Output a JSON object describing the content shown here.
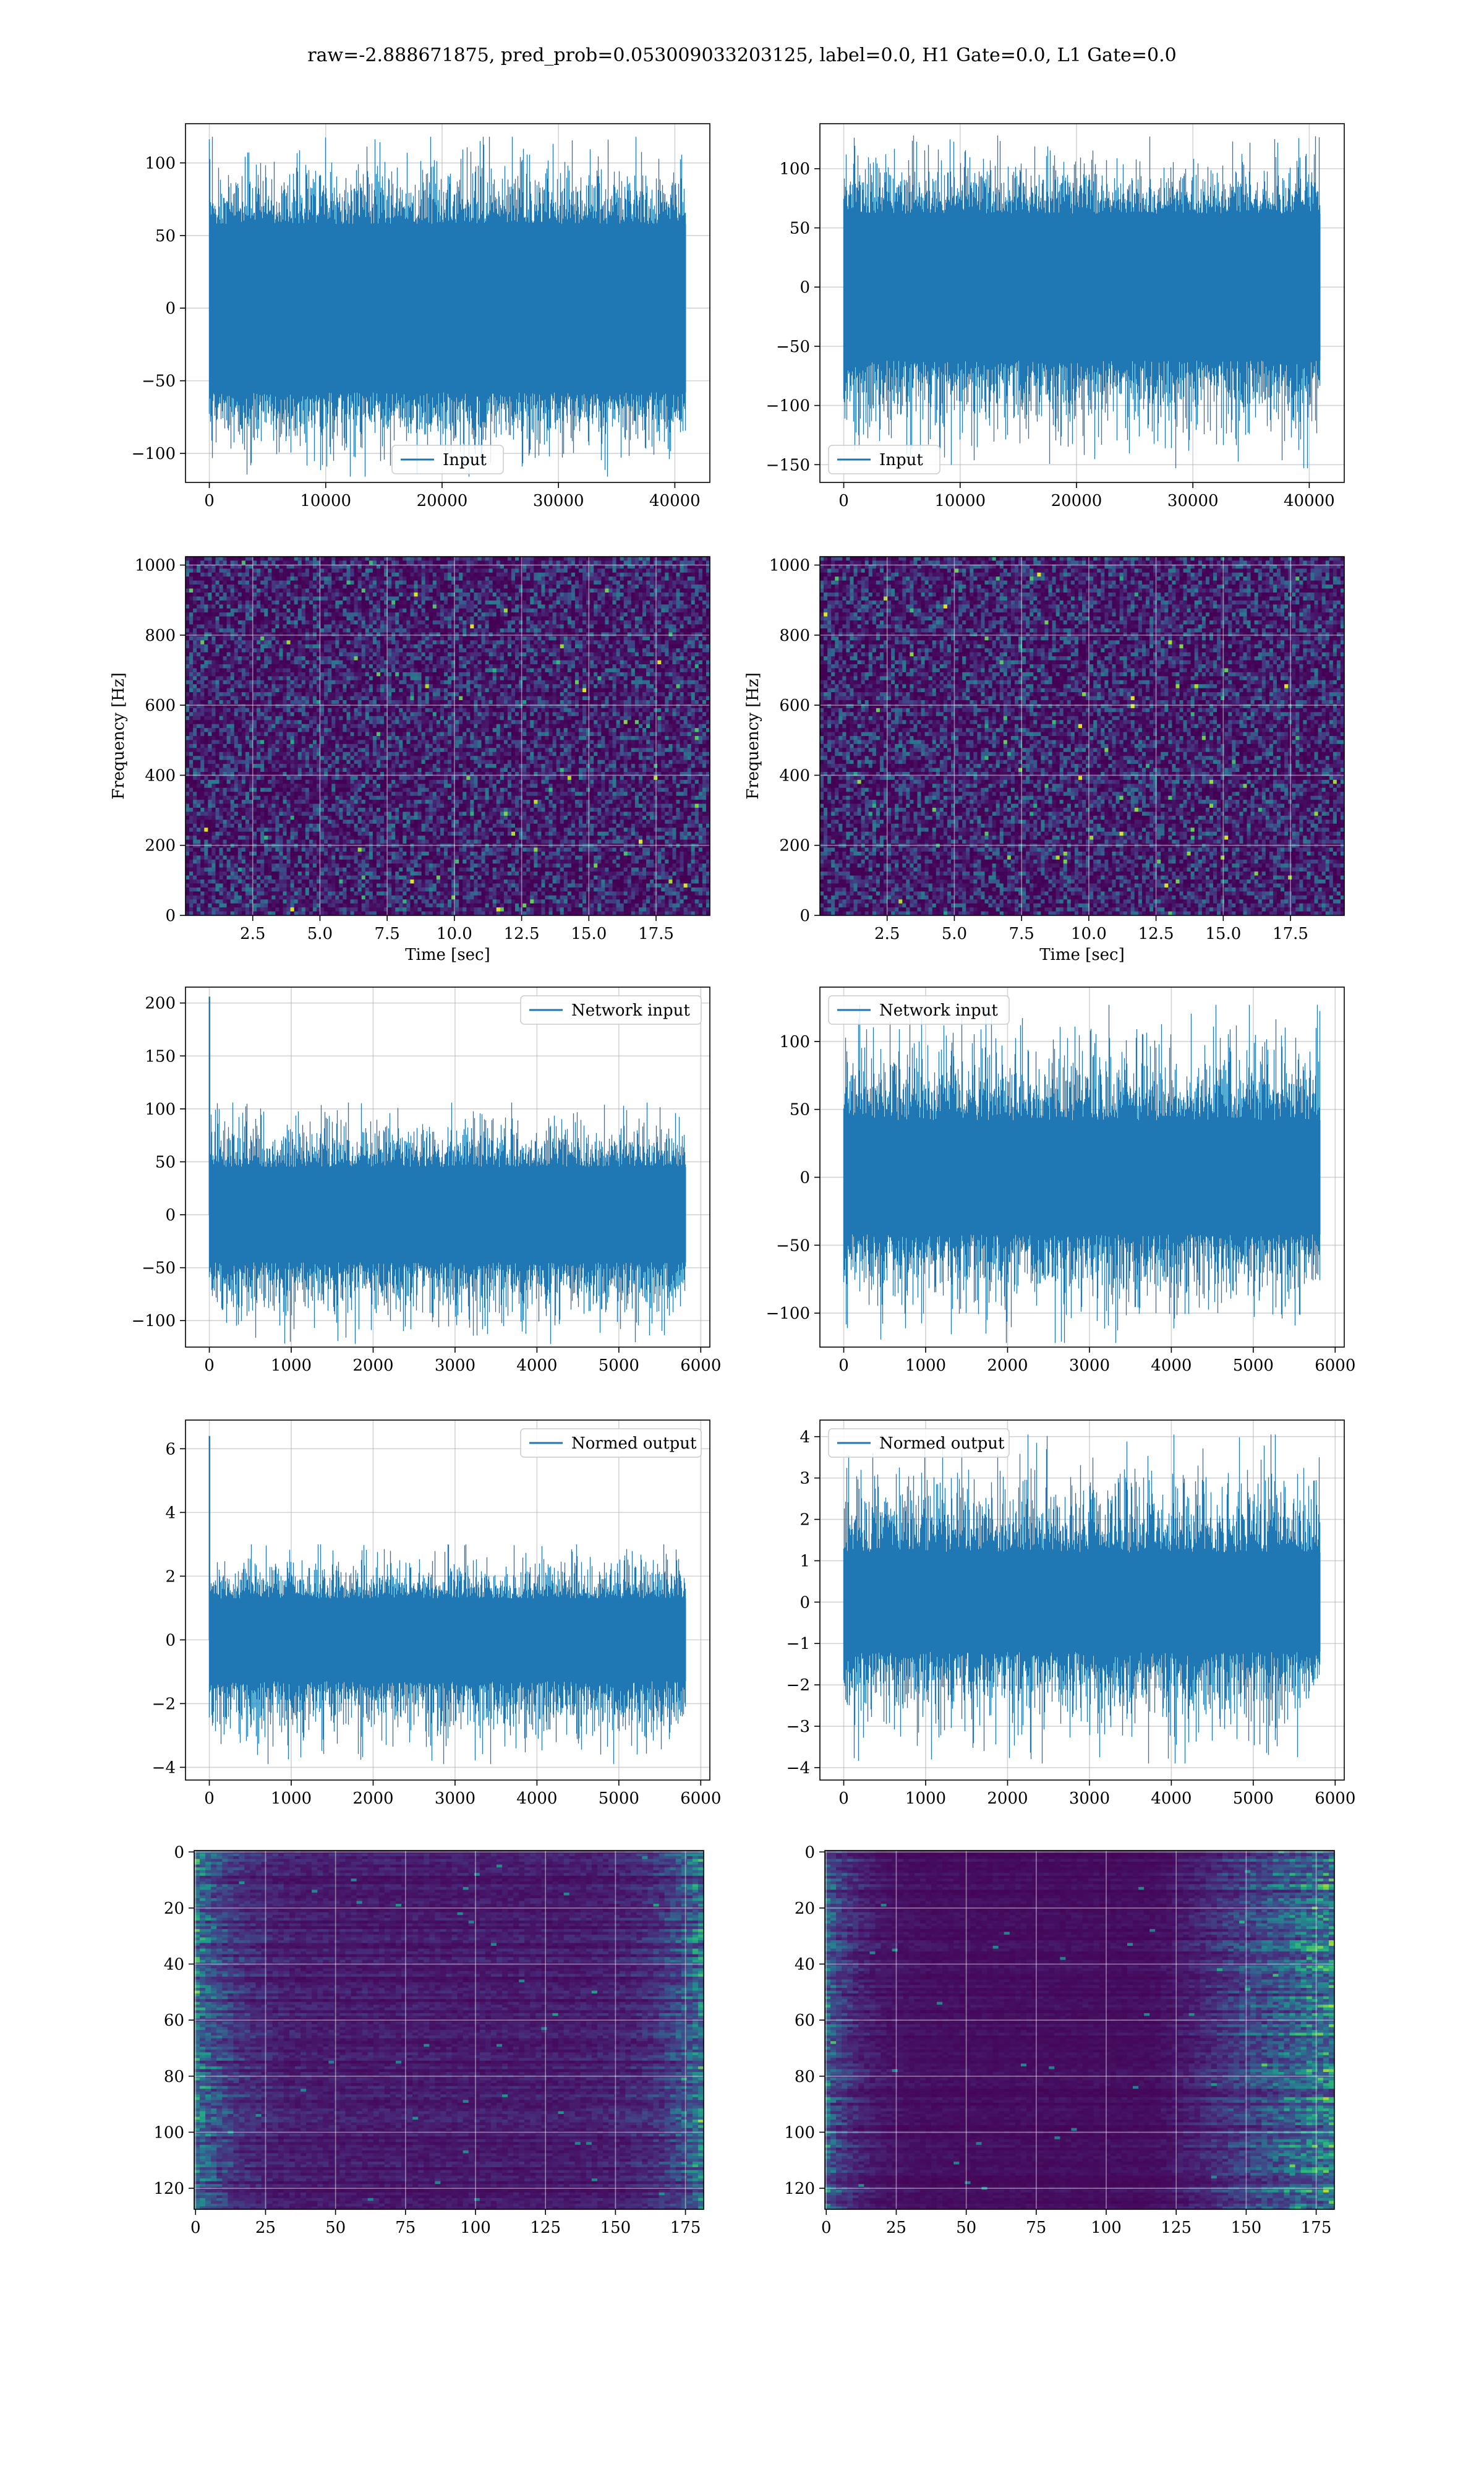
{
  "suptitle": "raw=-2.888671875, pred_prob=0.053009033203125, label=0.0, H1 Gate=0.0, L1 Gate=0.0",
  "colors": {
    "line": "#1f77b4",
    "grid": "#b0b0b0",
    "viridis_dark": "#440154"
  },
  "chart_data": [
    {
      "id": "input-h1",
      "type": "line",
      "legend": "Input",
      "legend_position": "lower center",
      "x_range": [
        0,
        40960
      ],
      "xlim": [
        -2048,
        43008
      ],
      "ylim": [
        -120,
        127
      ],
      "x_ticks": [
        0,
        10000,
        20000,
        30000,
        40000
      ],
      "y_ticks": [
        -100,
        -50,
        0,
        50,
        100
      ],
      "x_tick_labels": [
        "0",
        "10000",
        "20000",
        "30000",
        "40000"
      ],
      "y_tick_labels": [
        "−100",
        "−50",
        "0",
        "50",
        "100"
      ],
      "envelope": {
        "core": [
          -58,
          58
        ],
        "min": -116,
        "max": 118
      },
      "grid": true
    },
    {
      "id": "input-l1",
      "type": "line",
      "legend": "Input",
      "legend_position": "lower left",
      "x_range": [
        0,
        40960
      ],
      "xlim": [
        -2048,
        43008
      ],
      "ylim": [
        -165,
        138
      ],
      "x_ticks": [
        0,
        10000,
        20000,
        30000,
        40000
      ],
      "y_ticks": [
        -150,
        -100,
        -50,
        0,
        50,
        100
      ],
      "x_tick_labels": [
        "0",
        "10000",
        "20000",
        "30000",
        "40000"
      ],
      "y_tick_labels": [
        "−150",
        "−100",
        "−50",
        "0",
        "50",
        "100"
      ],
      "envelope": {
        "core": [
          -62,
          62
        ],
        "min": -153,
        "max": 128
      },
      "grid": true
    },
    {
      "id": "spec-h1",
      "type": "heatmap",
      "colormap": "viridis",
      "xlabel": "Time [sec]",
      "ylabel": "Frequency [Hz]",
      "xlim": [
        0,
        19.5
      ],
      "ylim": [
        0,
        1024
      ],
      "x_ticks": [
        2.5,
        5.0,
        7.5,
        10.0,
        12.5,
        15.0,
        17.5
      ],
      "y_ticks": [
        0,
        200,
        400,
        600,
        800,
        1000
      ],
      "x_tick_labels": [
        "2.5",
        "5.0",
        "7.5",
        "10.0",
        "12.5",
        "15.0",
        "17.5"
      ],
      "y_tick_labels": [
        "0",
        "200",
        "400",
        "600",
        "800",
        "1000"
      ],
      "grid": true
    },
    {
      "id": "spec-l1",
      "type": "heatmap",
      "colormap": "viridis",
      "xlabel": "Time [sec]",
      "ylabel": "Frequency [Hz]",
      "xlim": [
        0,
        19.5
      ],
      "ylim": [
        0,
        1024
      ],
      "x_ticks": [
        2.5,
        5.0,
        7.5,
        10.0,
        12.5,
        15.0,
        17.5
      ],
      "y_ticks": [
        0,
        200,
        400,
        600,
        800,
        1000
      ],
      "x_tick_labels": [
        "2.5",
        "5.0",
        "7.5",
        "10.0",
        "12.5",
        "15.0",
        "17.5"
      ],
      "y_tick_labels": [
        "0",
        "200",
        "400",
        "600",
        "800",
        "1000"
      ],
      "grid": true
    },
    {
      "id": "netin-h1",
      "type": "line",
      "legend": "Network input",
      "legend_position": "upper right",
      "x_range": [
        0,
        5820
      ],
      "xlim": [
        -291,
        6111
      ],
      "ylim": [
        -125,
        215
      ],
      "x_ticks": [
        0,
        1000,
        2000,
        3000,
        4000,
        5000,
        6000
      ],
      "y_ticks": [
        -100,
        -50,
        0,
        50,
        100,
        150,
        200
      ],
      "x_tick_labels": [
        "0",
        "1000",
        "2000",
        "3000",
        "4000",
        "5000",
        "6000"
      ],
      "y_tick_labels": [
        "−100",
        "−50",
        "0",
        "50",
        "100",
        "150",
        "200"
      ],
      "envelope": {
        "core": [
          -45,
          45
        ],
        "min": -122,
        "max": 106
      },
      "spikes": [
        {
          "x": 2,
          "y": 206
        }
      ],
      "grid": true
    },
    {
      "id": "netin-l1",
      "type": "line",
      "legend": "Network input",
      "legend_position": "upper left",
      "x_range": [
        0,
        5820
      ],
      "xlim": [
        -291,
        6111
      ],
      "ylim": [
        -125,
        140
      ],
      "x_ticks": [
        0,
        1000,
        2000,
        3000,
        4000,
        5000,
        6000
      ],
      "y_ticks": [
        -100,
        -50,
        0,
        50,
        100
      ],
      "x_tick_labels": [
        "0",
        "1000",
        "2000",
        "3000",
        "4000",
        "5000",
        "6000"
      ],
      "y_tick_labels": [
        "−100",
        "−50",
        "0",
        "50",
        "100"
      ],
      "envelope": {
        "core": [
          -42,
          42
        ],
        "min": -122,
        "max": 127
      },
      "grid": true
    },
    {
      "id": "normout-h1",
      "type": "line",
      "legend": "Normed output",
      "legend_position": "upper right",
      "x_range": [
        0,
        5820
      ],
      "xlim": [
        -291,
        6111
      ],
      "ylim": [
        -4.4,
        6.9
      ],
      "x_ticks": [
        0,
        1000,
        2000,
        3000,
        4000,
        5000,
        6000
      ],
      "y_ticks": [
        -4,
        -2,
        0,
        2,
        4,
        6
      ],
      "x_tick_labels": [
        "0",
        "1000",
        "2000",
        "3000",
        "4000",
        "5000",
        "6000"
      ],
      "y_tick_labels": [
        "−4",
        "−2",
        "0",
        "2",
        "4",
        "6"
      ],
      "envelope": {
        "core": [
          -1.3,
          1.3
        ],
        "min": -3.9,
        "max": 3.0
      },
      "spikes": [
        {
          "x": 2,
          "y": 6.4
        }
      ],
      "grid": true
    },
    {
      "id": "normout-l1",
      "type": "line",
      "legend": "Normed output",
      "legend_position": "upper left",
      "x_range": [
        0,
        5820
      ],
      "xlim": [
        -291,
        6111
      ],
      "ylim": [
        -4.3,
        4.4
      ],
      "x_ticks": [
        0,
        1000,
        2000,
        3000,
        4000,
        5000,
        6000
      ],
      "y_ticks": [
        -4,
        -3,
        -2,
        -1,
        0,
        1,
        2,
        3,
        4
      ],
      "x_tick_labels": [
        "0",
        "1000",
        "2000",
        "3000",
        "4000",
        "5000",
        "6000"
      ],
      "y_tick_labels": [
        "−4",
        "−3",
        "−2",
        "−1",
        "0",
        "1",
        "2",
        "3",
        "4"
      ],
      "envelope": {
        "core": [
          -1.2,
          1.2
        ],
        "min": -3.9,
        "max": 4.05
      },
      "grid": true
    },
    {
      "id": "feat-h1",
      "type": "heatmap",
      "colormap": "viridis",
      "xlim": [
        -0.5,
        181.5
      ],
      "ylim": [
        127.5,
        -0.5
      ],
      "y_inverted": true,
      "x_ticks": [
        0,
        25,
        50,
        75,
        100,
        125,
        150,
        175
      ],
      "y_ticks": [
        0,
        20,
        40,
        60,
        80,
        100,
        120
      ],
      "x_tick_labels": [
        "0",
        "25",
        "50",
        "75",
        "100",
        "125",
        "150",
        "175"
      ],
      "y_tick_labels": [
        "0",
        "20",
        "40",
        "60",
        "80",
        "100",
        "120"
      ],
      "active_regions": "left edge (0–20) and right edge (160–181)",
      "grid": true
    },
    {
      "id": "feat-l1",
      "type": "heatmap",
      "colormap": "viridis",
      "xlim": [
        -0.5,
        181.5
      ],
      "ylim": [
        127.5,
        -0.5
      ],
      "y_inverted": true,
      "x_ticks": [
        0,
        25,
        50,
        75,
        100,
        125,
        150,
        175
      ],
      "y_ticks": [
        0,
        20,
        40,
        60,
        80,
        100,
        120
      ],
      "x_tick_labels": [
        "0",
        "25",
        "50",
        "75",
        "100",
        "125",
        "150",
        "175"
      ],
      "y_tick_labels": [
        "0",
        "20",
        "40",
        "60",
        "80",
        "100",
        "120"
      ],
      "active_regions": "left edge (0–15) and right region (120–181)",
      "grid": true
    }
  ]
}
